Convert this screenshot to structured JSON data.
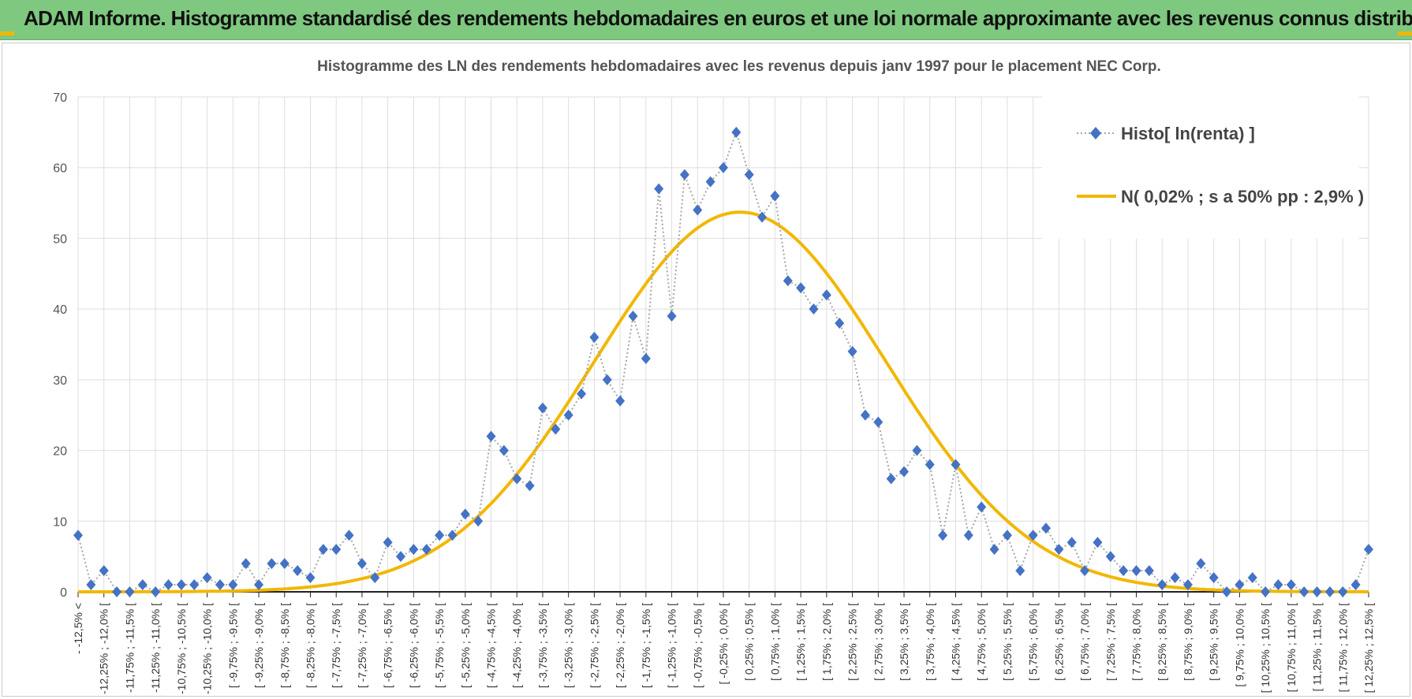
{
  "banner": {
    "title": "ADAM Informe. Histogramme standardisé des rendements hebdomadaires en euros et une loi normale approximante avec les revenus connus distribués"
  },
  "colors": {
    "banner_bg": "#7ec87f",
    "accent": "#f2b705",
    "series_markers": "#4472c4",
    "series_line": "#a6a6a6",
    "normal_curve": "#f2b705"
  },
  "chart_data": {
    "type": "line",
    "title": "Histogramme des LN des rendements hebdomadaires avec les revenus depuis janv 1997 pour le placement NEC Corp.",
    "xlabel": "",
    "ylabel": "",
    "ylim": [
      0,
      70
    ],
    "yticks": [
      0,
      10,
      20,
      30,
      40,
      50,
      60,
      70
    ],
    "grid": true,
    "legend_position": "top-right",
    "x_tick_labels": [
      "- -12,5% <",
      "[ -12,25% ; -12,0% [",
      "[ -11,75% ; -11,5% [",
      "[ -11,25% ; -11,0% [",
      "[ -10,75% ; -10,5% [",
      "[ -10,25% ; -10,0% [",
      "[ -9,75% ; -9,5% [",
      "[ -9,25% ; -9,0% [",
      "[ -8,75% ; -8,5% [",
      "[ -8,25% ; -8,0% [",
      "[ -7,75% ; -7,5% [",
      "[ -7,25% ; -7,0% [",
      "[ -6,75% ; -6,5% [",
      "[ -6,25% ; -6,0% [",
      "[ -5,75% ; -5,5% [",
      "[ -5,25% ; -5,0% [",
      "[ -4,75% ; -4,5% [",
      "[ -4,25% ; -4,0% [",
      "[ -3,75% ; -3,5% [",
      "[ -3,25% ; -3,0% [",
      "[ -2,75% ; -2,5% [",
      "[ -2,25% ; -2,0% [",
      "[ -1,75% ; -1,5% [",
      "[ -1,25% ; -1,0% [",
      "[ -0,75% ; -0,5% [",
      "[ -0,25% ; 0,0% [",
      "[ 0,25% ; 0,5% [",
      "[ 0,75% ; 1,0% [",
      "[ 1,25% ; 1,5% [",
      "[ 1,75% ; 2,0% [",
      "[ 2,25% ; 2,5% [",
      "[ 2,75% ; 3,0% [",
      "[ 3,25% ; 3,5% [",
      "[ 3,75% ; 4,0% [",
      "[ 4,25% ; 4,5% [",
      "[ 4,75% ; 5,0% [",
      "[ 5,25% ; 5,5% [",
      "[ 5,75% ; 6,0% [",
      "[ 6,25% ; 6,5% [",
      "[ 6,75% ; 7,0% [",
      "[ 7,25% ; 7,5% [",
      "[ 7,75% ; 8,0% [",
      "[ 8,25% ; 8,5% [",
      "[ 8,75% ; 9,0% [",
      "[ 9,25% ; 9,5% [",
      "[ 9,75% ; 10,0% [",
      "[ 10,25% ; 10,5% [",
      "[ 10,75% ; 11,0% [",
      "[ 11,25% ; 11,5% [",
      "[ 11,75% ; 12,0% [",
      "[ 12,25% ; 12,5% ["
    ],
    "series": [
      {
        "name": "Histo[ ln(renta) ]",
        "style": "dotted line with diamond markers",
        "values": [
          8,
          1,
          3,
          0,
          0,
          1,
          0,
          1,
          1,
          1,
          2,
          1,
          1,
          4,
          1,
          4,
          4,
          3,
          2,
          6,
          6,
          8,
          4,
          2,
          7,
          5,
          6,
          6,
          8,
          8,
          11,
          10,
          22,
          20,
          16,
          15,
          26,
          23,
          25,
          28,
          36,
          30,
          27,
          39,
          33,
          57,
          39,
          59,
          54,
          58,
          60,
          65,
          59,
          53,
          56,
          44,
          43,
          40,
          42,
          38,
          34,
          25,
          24,
          16,
          17,
          20,
          18,
          8,
          18,
          8,
          12,
          6,
          8,
          3,
          8,
          9,
          6,
          7,
          3,
          7,
          5,
          3,
          3,
          3,
          1,
          2,
          1,
          4,
          2,
          0,
          1,
          2,
          0,
          1,
          1,
          0,
          0,
          0,
          0,
          1,
          6
        ]
      },
      {
        "name": "N( 0,02% ; s a 50% pp : 2,9% )",
        "style": "solid line",
        "distribution": {
          "mean_index": 51.3,
          "sd_index": 11.3,
          "peak": 53.7
        }
      }
    ]
  }
}
